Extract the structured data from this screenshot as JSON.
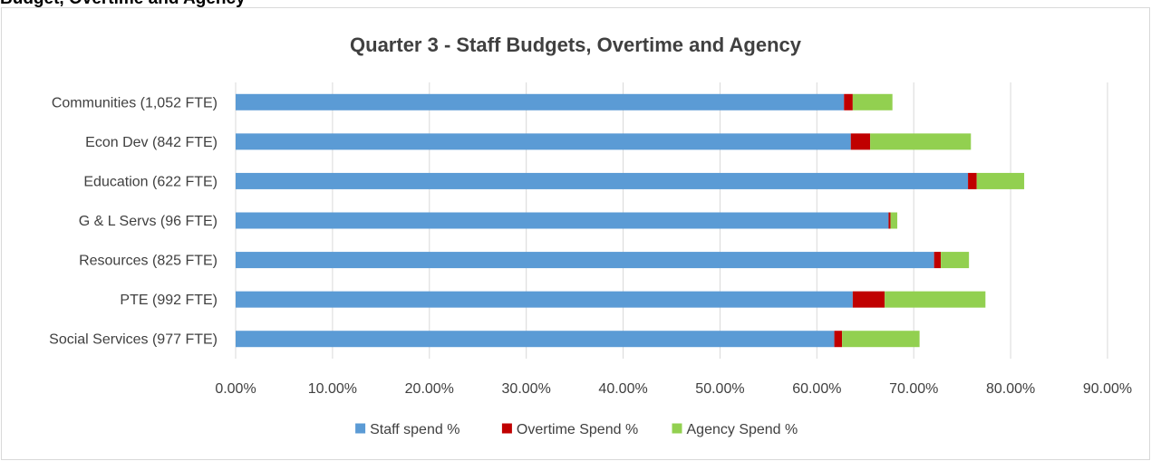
{
  "page_heading": "Budget, Overtime and Agency",
  "chart_data": {
    "type": "bar",
    "orientation": "horizontal",
    "stacked": true,
    "title": "Quarter 3 - Staff Budgets, Overtime and Agency",
    "categories": [
      "Communities (1,052 FTE)",
      "Econ Dev (842 FTE)",
      "Education (622 FTE)",
      "G & L Servs (96 FTE)",
      "Resources (825 FTE)",
      "PTE (992 FTE)",
      "Social Services (977 FTE)"
    ],
    "series": [
      {
        "name": "Staff spend %",
        "color": "#5b9bd5",
        "values": [
          62.8,
          63.5,
          75.6,
          67.4,
          72.1,
          63.7,
          61.8
        ]
      },
      {
        "name": "Overtime Spend %",
        "color": "#c00000",
        "values": [
          0.9,
          2.0,
          0.9,
          0.2,
          0.7,
          3.3,
          0.8
        ]
      },
      {
        "name": "Agency Spend %",
        "color": "#92d050",
        "values": [
          4.1,
          10.4,
          4.9,
          0.7,
          2.9,
          10.4,
          8.0
        ]
      }
    ],
    "xlim": [
      0,
      90
    ],
    "xticks": [
      "0.00%",
      "10.00%",
      "20.00%",
      "30.00%",
      "40.00%",
      "50.00%",
      "60.00%",
      "70.00%",
      "80.00%",
      "90.00%"
    ],
    "grid": true,
    "legend_position": "bottom"
  }
}
